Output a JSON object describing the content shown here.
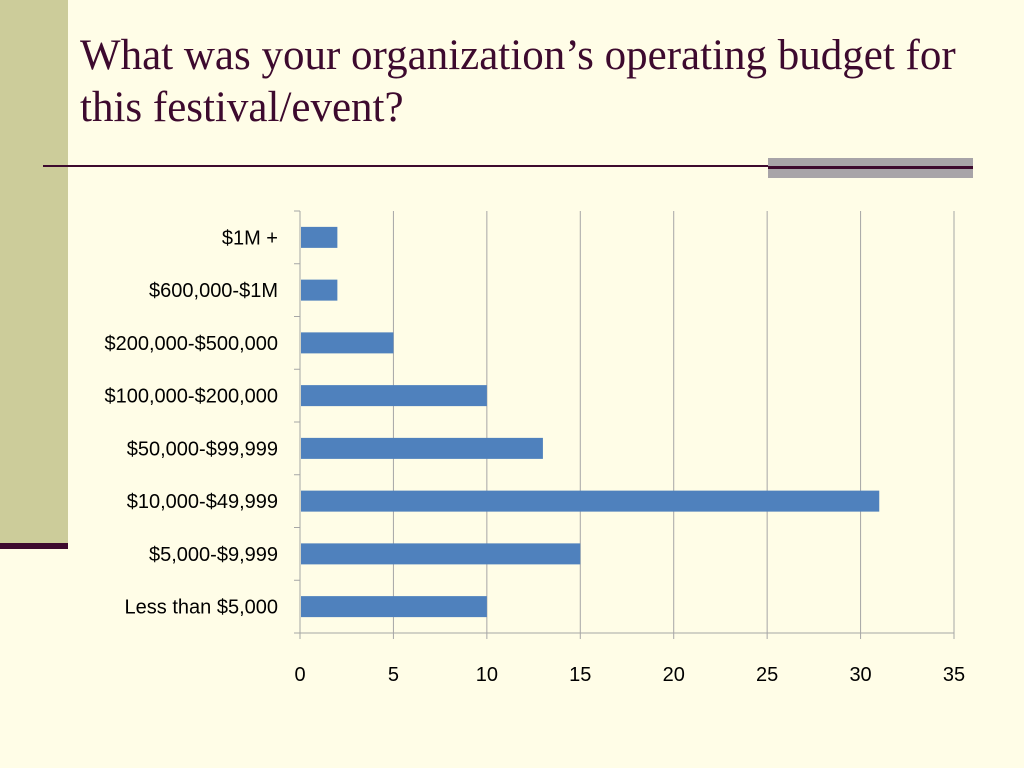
{
  "slide": {
    "title": "What was your organization’s operating budget for this festival/event?"
  },
  "colors": {
    "background": "#FFFDE7",
    "sidebar": "#CCCC9A",
    "accent": "#3D0A2E",
    "bar": "#4F81BD",
    "grid": "#A6A6A6"
  },
  "chart_data": {
    "type": "bar",
    "orientation": "horizontal",
    "categories": [
      "$1M +",
      "$600,000-$1M",
      "$200,000-$500,000",
      "$100,000-$200,000",
      "$50,000-$99,999",
      "$10,000-$49,999",
      "$5,000-$9,999",
      "Less than $5,000"
    ],
    "values": [
      2,
      2,
      5,
      10,
      13,
      31,
      15,
      10
    ],
    "xlim": [
      0,
      35
    ],
    "xticks": [
      0,
      5,
      10,
      15,
      20,
      25,
      30,
      35
    ],
    "grid": true,
    "legend": "none"
  }
}
